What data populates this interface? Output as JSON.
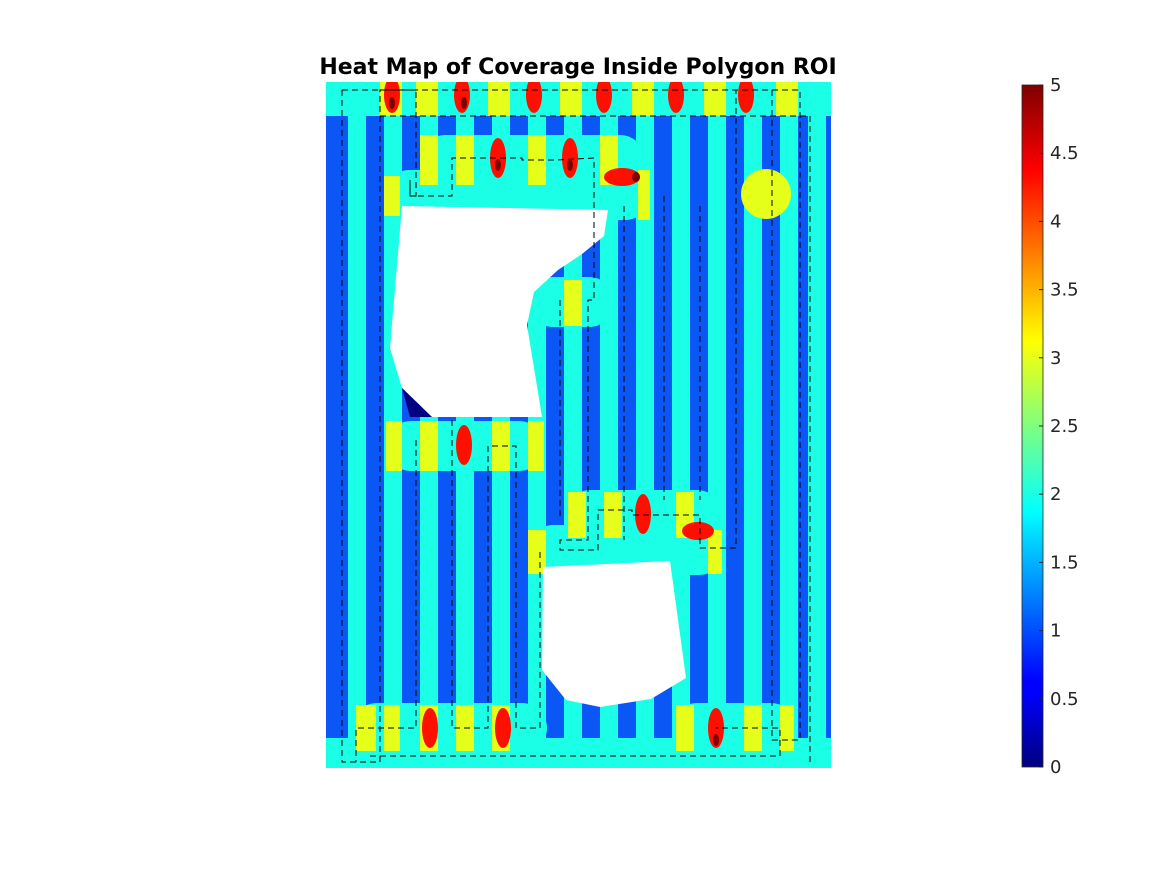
{
  "chart_data": {
    "type": "heatmap",
    "title": "Heat Map of Coverage Inside Polygon ROI",
    "xlabel": "",
    "ylabel": "",
    "colormap": "jet",
    "clim": [
      0,
      5
    ],
    "colorbar": {
      "location": "right",
      "ticks": [
        0,
        0.5,
        1,
        1.5,
        2,
        2.5,
        3,
        3.5,
        4,
        4.5,
        5
      ],
      "tick_labels": [
        "0",
        "0.5",
        "1",
        "1.5",
        "2",
        "2.5",
        "3",
        "3.5",
        "4",
        "4.5",
        "5"
      ]
    },
    "grid": false,
    "background_coverage": 1,
    "stripe_coverage": 2,
    "overlap_coverage_levels": [
      3,
      4.3,
      5
    ],
    "obstacle_count": 2,
    "path_style": "dashed black lawnmower path"
  }
}
